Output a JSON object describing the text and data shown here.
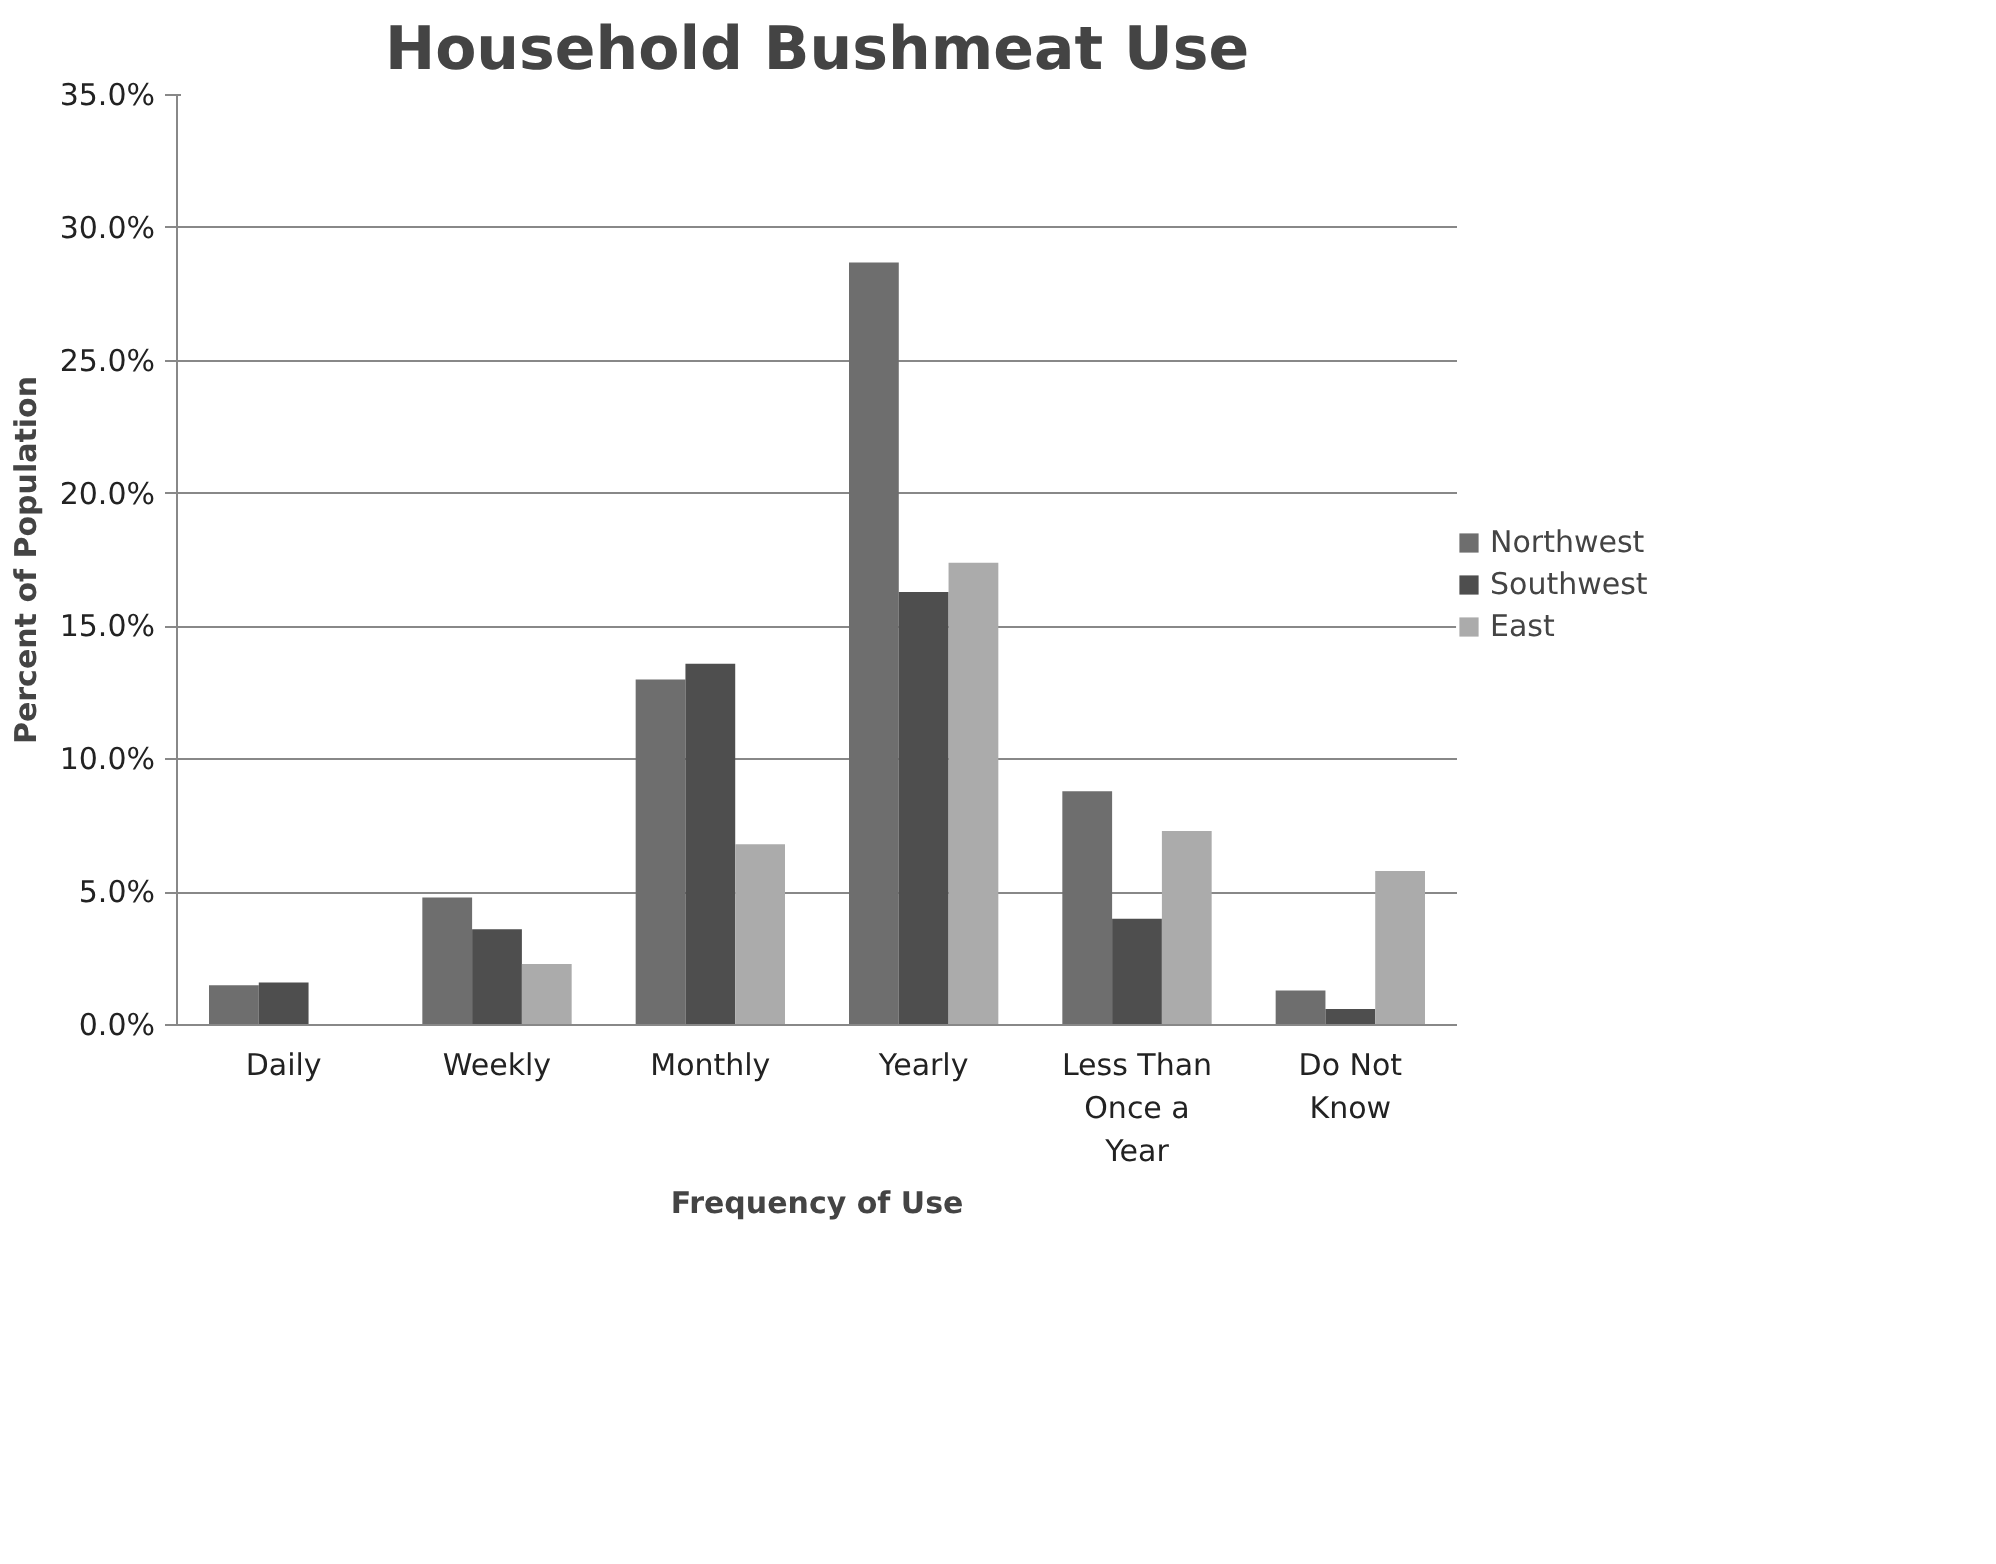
{
  "chart_data": {
    "type": "bar",
    "title": "Household Bushmeat Use",
    "xlabel": "Frequency of Use",
    "ylabel": "Percent of Population",
    "categories": [
      "Daily",
      "Weekly",
      "Monthly",
      "Yearly",
      "Less Than Once a Year",
      "Do Not Know"
    ],
    "series": [
      {
        "name": "Northwest",
        "color": "#6e6e6e",
        "values": [
          1.5,
          4.8,
          13.0,
          28.7,
          8.8,
          1.3
        ]
      },
      {
        "name": "Southwest",
        "color": "#4e4e4e",
        "values": [
          1.6,
          3.6,
          13.6,
          16.3,
          4.0,
          0.6
        ]
      },
      {
        "name": "East",
        "color": "#ababab",
        "values": [
          0,
          2.3,
          6.8,
          17.4,
          7.3,
          5.8
        ]
      }
    ],
    "ylim": [
      0,
      35
    ],
    "yticks": [
      {
        "value": 0,
        "label": "0.0%"
      },
      {
        "value": 5,
        "label": "5.0%"
      },
      {
        "value": 10,
        "label": "10.0%"
      },
      {
        "value": 15,
        "label": "15.0%"
      },
      {
        "value": 20,
        "label": "20.0%"
      },
      {
        "value": 25,
        "label": "25.0%"
      },
      {
        "value": 30,
        "label": "30.0%"
      },
      {
        "value": 35,
        "label": "35.0%"
      }
    ],
    "grid": "y",
    "legend": "right"
  }
}
